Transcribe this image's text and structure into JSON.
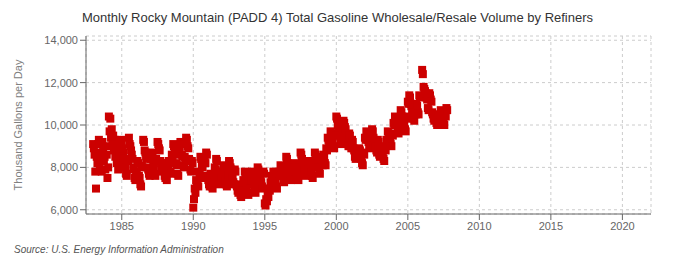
{
  "chart_data": {
    "type": "scatter",
    "title": "Monthly Rocky Mountain (PADD 4) Total Gasoline Wholesale/Resale Volume by Refiners",
    "ylabel": "Thousand Gallons per Day",
    "annotation": "Source: U.S. Energy Information Administration",
    "color": "#cc0000",
    "marker": "square",
    "grid": true,
    "xlim": [
      1982.5,
      2022
    ],
    "ylim": [
      5800,
      14200
    ],
    "xticks": [
      1985,
      1990,
      1995,
      2000,
      2005,
      2010,
      2015,
      2020
    ],
    "yticks": [
      {
        "value": 6000,
        "label": "6,000"
      },
      {
        "value": 8000,
        "label": "8,000"
      },
      {
        "value": 10000,
        "label": "10,000"
      },
      {
        "value": 12000,
        "label": "12,000"
      },
      {
        "value": 14000,
        "label": "14,000"
      }
    ],
    "x": [
      1983.0,
      1983.1,
      1983.2,
      1983.3,
      1983.4,
      1983.5,
      1983.6,
      1983.7,
      1983.8,
      1983.9,
      1984.0,
      1984.1,
      1984.2,
      1984.3,
      1984.4,
      1984.5,
      1984.6,
      1984.7,
      1984.8,
      1984.9,
      1985.0,
      1985.1,
      1985.2,
      1985.3,
      1985.4,
      1985.5,
      1985.6,
      1985.7,
      1985.8,
      1985.9,
      1986.0,
      1986.1,
      1986.2,
      1986.3,
      1986.4,
      1986.5,
      1986.6,
      1986.7,
      1986.8,
      1986.9,
      1987.0,
      1987.1,
      1987.2,
      1987.3,
      1987.4,
      1987.5,
      1987.6,
      1987.7,
      1987.8,
      1987.9,
      1988.0,
      1988.1,
      1988.2,
      1988.3,
      1988.4,
      1988.5,
      1988.6,
      1988.7,
      1988.8,
      1988.9,
      1989.0,
      1989.1,
      1989.2,
      1989.3,
      1989.4,
      1989.5,
      1989.6,
      1989.7,
      1989.8,
      1989.9,
      1990.0,
      1990.1,
      1990.2,
      1990.3,
      1990.4,
      1990.5,
      1990.6,
      1990.7,
      1990.8,
      1990.9,
      1991.0,
      1991.1,
      1991.2,
      1991.3,
      1991.4,
      1991.5,
      1991.6,
      1991.7,
      1991.8,
      1991.9,
      1992.0,
      1992.1,
      1992.2,
      1992.3,
      1992.4,
      1992.5,
      1992.6,
      1992.7,
      1992.8,
      1992.9,
      1993.0,
      1993.1,
      1993.2,
      1993.3,
      1993.4,
      1993.5,
      1993.6,
      1993.7,
      1993.8,
      1993.9,
      1994.0,
      1994.1,
      1994.2,
      1994.3,
      1994.4,
      1994.5,
      1994.6,
      1994.7,
      1994.8,
      1994.9,
      1995.0,
      1995.1,
      1995.2,
      1995.3,
      1995.4,
      1995.5,
      1995.6,
      1995.7,
      1995.8,
      1995.9,
      1996.0,
      1996.1,
      1996.2,
      1996.3,
      1996.4,
      1996.5,
      1996.6,
      1996.7,
      1996.8,
      1996.9,
      1997.0,
      1997.1,
      1997.2,
      1997.3,
      1997.4,
      1997.5,
      1997.6,
      1997.7,
      1997.8,
      1997.9,
      1998.0,
      1998.1,
      1998.2,
      1998.3,
      1998.4,
      1998.5,
      1998.6,
      1998.7,
      1998.8,
      1998.9,
      1999.0,
      1999.1,
      1999.2,
      1999.3,
      1999.4,
      1999.5,
      1999.6,
      1999.7,
      1999.8,
      1999.9,
      2000.0,
      2000.1,
      2000.2,
      2000.3,
      2000.4,
      2000.5,
      2000.6,
      2000.7,
      2000.8,
      2000.9,
      2001.0,
      2001.1,
      2001.2,
      2001.3,
      2001.4,
      2001.5,
      2001.6,
      2001.7,
      2001.8,
      2001.9,
      2002.0,
      2002.1,
      2002.2,
      2002.3,
      2002.4,
      2002.5,
      2002.6,
      2002.7,
      2002.8,
      2002.9,
      2003.0,
      2003.1,
      2003.2,
      2003.3,
      2003.4,
      2003.5,
      2003.6,
      2003.7,
      2003.8,
      2003.9,
      2004.0,
      2004.1,
      2004.2,
      2004.3,
      2004.4,
      2004.5,
      2004.6,
      2004.7,
      2004.8,
      2004.9,
      2005.0,
      2005.1,
      2005.2,
      2005.3,
      2005.4,
      2005.5,
      2005.6,
      2005.7,
      2005.8,
      2006.0,
      2006.1,
      2006.2,
      2006.3,
      2006.4,
      2006.5,
      2006.6,
      2006.7,
      2006.8,
      2007.0,
      2007.1,
      2007.2,
      2007.3,
      2007.4,
      2007.5,
      2007.6,
      2007.7,
      1983.05,
      1983.15,
      1983.25,
      1983.35,
      1983.45,
      1983.55,
      1983.65,
      1983.75,
      1983.85,
      1983.95,
      1984.05,
      1984.15,
      1984.25,
      1984.35,
      1984.45,
      1984.55,
      1984.65,
      1984.75,
      1984.85,
      1984.95,
      1985.05,
      1985.15,
      1985.25,
      1985.35,
      1985.45,
      1985.55,
      1985.65,
      1985.75,
      1985.85,
      1985.95,
      1986.05,
      1986.15,
      1986.25,
      1986.35,
      1986.45,
      1986.55,
      1986.65,
      1986.75,
      1986.85,
      1986.95,
      1987.05,
      1987.15,
      1987.25,
      1987.35,
      1987.45,
      1987.55,
      1987.65,
      1987.75,
      1987.85,
      1987.95,
      1988.05,
      1988.15,
      1988.25,
      1988.35,
      1988.45,
      1988.55,
      1988.65,
      1988.75,
      1988.85,
      1988.95,
      1989.05,
      1989.15,
      1989.25,
      1989.35,
      1989.45,
      1989.55,
      1989.65,
      1989.75,
      1989.85,
      1989.95,
      1990.05,
      1990.15,
      1990.25,
      1990.35,
      1990.45,
      1990.55,
      1990.65,
      1990.75,
      1990.85,
      1990.95,
      1991.05,
      1991.15,
      1991.25,
      1991.35,
      1991.45,
      1991.55,
      1991.65,
      1991.75,
      1991.85,
      1991.95,
      1992.05,
      1992.15,
      1992.25,
      1992.35,
      1992.45,
      1992.55,
      1992.65,
      1992.75,
      1992.85,
      1992.95,
      1993.05,
      1993.15,
      1993.25,
      1993.35,
      1993.45,
      1993.55,
      1993.65,
      1993.75,
      1993.85,
      1993.95,
      1994.05,
      1994.15,
      1994.25,
      1994.35,
      1994.45,
      1994.55,
      1994.65,
      1994.75,
      1994.85,
      1994.95,
      1995.05,
      1995.15,
      1995.25,
      1995.35,
      1995.45,
      1995.55,
      1995.65,
      1995.75,
      1995.85,
      1995.95,
      1996.05,
      1996.15,
      1996.25,
      1996.35,
      1996.45,
      1996.55,
      1996.65,
      1996.75,
      1996.85,
      1996.95,
      1997.05,
      1997.15,
      1997.25,
      1997.35,
      1997.45,
      1997.55,
      1997.65,
      1997.75,
      1997.85,
      1997.95,
      1998.05,
      1998.15,
      1998.25,
      1998.35,
      1998.45,
      1998.55,
      1998.65,
      1998.75,
      1998.85,
      1998.95,
      1999.05,
      1999.15,
      1999.25,
      1999.35,
      1999.45,
      1999.55,
      1999.65,
      1999.75,
      1999.85,
      1999.95,
      2000.05,
      2000.15,
      2000.25,
      2000.35,
      2000.45,
      2000.55,
      2000.65,
      2000.75,
      2000.85,
      2000.95,
      2001.05,
      2001.15,
      2001.25,
      2001.35,
      2001.45,
      2001.55,
      2001.65,
      2001.75,
      2001.85,
      2001.95,
      2002.05,
      2002.15,
      2002.25,
      2002.35,
      2002.45,
      2002.55,
      2002.65,
      2002.75,
      2002.85,
      2002.95,
      2003.05,
      2003.15,
      2003.25,
      2003.35,
      2003.45,
      2003.55,
      2003.65,
      2003.75,
      2003.85,
      2003.95,
      2004.05,
      2004.15,
      2004.25,
      2004.35,
      2004.45,
      2004.55,
      2004.65,
      2004.75,
      2004.85,
      2004.95,
      2005.05,
      2005.15,
      2005.25,
      2005.35,
      2005.45,
      2005.55,
      2005.65,
      2005.75,
      2005.85,
      2006.05,
      2006.15,
      2006.25,
      2006.35,
      2006.45,
      2006.55,
      2006.65,
      2006.75,
      2006.85,
      2007.05,
      2007.15,
      2007.25,
      2007.35,
      2007.45,
      2007.55,
      2007.65,
      2007.75
    ],
    "values": [
      9100,
      8600,
      7000,
      8200,
      9300,
      8400,
      7800,
      8800,
      8500,
      9000,
      7500,
      10400,
      10300,
      9800,
      9500,
      9300,
      9000,
      8500,
      8200,
      8800,
      9200,
      8700,
      8100,
      7700,
      8400,
      9400,
      9000,
      8600,
      8000,
      7500,
      7800,
      8300,
      7600,
      7200,
      8100,
      9300,
      8800,
      8500,
      8000,
      7700,
      8500,
      8700,
      8100,
      7700,
      8400,
      9200,
      8900,
      8300,
      7900,
      8200,
      7600,
      7500,
      8000,
      8300,
      7800,
      8600,
      9100,
      8700,
      8200,
      7700,
      8900,
      9200,
      8600,
      8100,
      8500,
      9400,
      9000,
      8400,
      7900,
      8300,
      6100,
      7000,
      7400,
      7200,
      7800,
      8500,
      8100,
      7600,
      8300,
      8700,
      7500,
      7200,
      7700,
      7100,
      7400,
      8000,
      8400,
      7800,
      7300,
      7600,
      7800,
      8100,
      7500,
      7200,
      7700,
      8300,
      8000,
      7600,
      7300,
      7900,
      7200,
      6900,
      7100,
      6700,
      7000,
      7400,
      7800,
      7200,
      6800,
      7500,
      7500,
      7800,
      7300,
      6900,
      7600,
      8000,
      7700,
      7400,
      7100,
      7800,
      6300,
      6500,
      6700,
      7000,
      7300,
      7600,
      7800,
      7400,
      7100,
      7700,
      7800,
      8100,
      7700,
      7400,
      8000,
      8500,
      8200,
      7800,
      7500,
      8100,
      7900,
      8200,
      7800,
      7500,
      8100,
      8700,
      8400,
      8000,
      7700,
      8300,
      8000,
      8300,
      7900,
      7600,
      8200,
      8700,
      8400,
      8100,
      7800,
      8500,
      8200,
      8600,
      8200,
      8900,
      9400,
      9200,
      9700,
      9400,
      9000,
      9600,
      10400,
      10000,
      9600,
      9200,
      9800,
      10200,
      9900,
      9500,
      9100,
      9600,
      9000,
      9300,
      8900,
      8500,
      8800,
      8600,
      8900,
      8500,
      8200,
      8700,
      9400,
      9700,
      9300,
      9000,
      9500,
      9800,
      9400,
      9100,
      8800,
      9300,
      8600,
      9000,
      8700,
      8400,
      8900,
      9300,
      9700,
      9400,
      9100,
      9600,
      10100,
      10400,
      10100,
      9700,
      10300,
      10700,
      10400,
      10100,
      9800,
      10400,
      11100,
      11400,
      11000,
      10700,
      10300,
      10600,
      11000,
      10600,
      11400,
      12600,
      11800,
      11600,
      11300,
      10800,
      11500,
      11200,
      10600,
      10300,
      10100,
      10500,
      10200,
      10700,
      10400,
      10100,
      10500,
      10800,
      8900,
      7800,
      8500,
      9100,
      8000,
      8700,
      9200,
      8300,
      7900,
      8600,
      8000,
      9700,
      9400,
      9100,
      8800,
      8500,
      8200,
      7900,
      8600,
      9300,
      8900,
      8400,
      8000,
      7600,
      8300,
      9100,
      8800,
      8400,
      7900,
      7400,
      7700,
      8200,
      7500,
      7100,
      8000,
      9200,
      8700,
      8400,
      7900,
      7600,
      8400,
      8600,
      8000,
      7600,
      8300,
      9100,
      8800,
      8200,
      7800,
      8100,
      7500,
      7400,
      7900,
      8200,
      7700,
      8500,
      9000,
      8600,
      8100,
      7600,
      8800,
      9100,
      8500,
      8000,
      8400,
      9300,
      8900,
      8300,
      7800,
      8200,
      6500,
      6800,
      7300,
      7100,
      7700,
      8400,
      8000,
      7500,
      8200,
      8600,
      7400,
      7100,
      7600,
      7000,
      7300,
      7900,
      8300,
      7700,
      7200,
      7500,
      7700,
      8000,
      7400,
      7100,
      7600,
      8200,
      7900,
      7500,
      7200,
      7800,
      7100,
      6800,
      7000,
      6600,
      6900,
      7300,
      7700,
      7100,
      6700,
      7400,
      7400,
      7700,
      7200,
      6800,
      7500,
      7900,
      7600,
      7300,
      7000,
      7700,
      6200,
      6400,
      6600,
      6900,
      7200,
      7500,
      7700,
      7300,
      7000,
      7600,
      7700,
      8000,
      7600,
      7300,
      7900,
      8400,
      8100,
      7700,
      7400,
      8000,
      7800,
      8100,
      7700,
      7400,
      8000,
      8600,
      8300,
      7900,
      7600,
      8200,
      7900,
      8200,
      7800,
      7500,
      8100,
      8600,
      8300,
      8000,
      7700,
      8400,
      8100,
      8500,
      8100,
      8800,
      9300,
      9100,
      9600,
      9300,
      8900,
      9500,
      10300,
      9900,
      9500,
      9100,
      9700,
      10100,
      9800,
      9400,
      9000,
      9500,
      8900,
      9200,
      8800,
      8400,
      8700,
      8500,
      8800,
      8400,
      8100,
      8600,
      9300,
      9600,
      9200,
      8900,
      9400,
      9700,
      9300,
      9000,
      8700,
      9200,
      8500,
      8900,
      8600,
      8300,
      8800,
      9200,
      9600,
      9300,
      9000,
      9500,
      10000,
      10300,
      10000,
      9600,
      10200,
      10600,
      10300,
      10000,
      9700,
      10300,
      11000,
      11300,
      10900,
      10600,
      10200,
      10500,
      10900,
      10500,
      11300,
      12400,
      11700,
      11500,
      11200,
      10700,
      11400,
      11100,
      10500,
      10200,
      10000,
      10400,
      10100,
      10600,
      10300,
      10000,
      10400,
      10700
    ]
  }
}
